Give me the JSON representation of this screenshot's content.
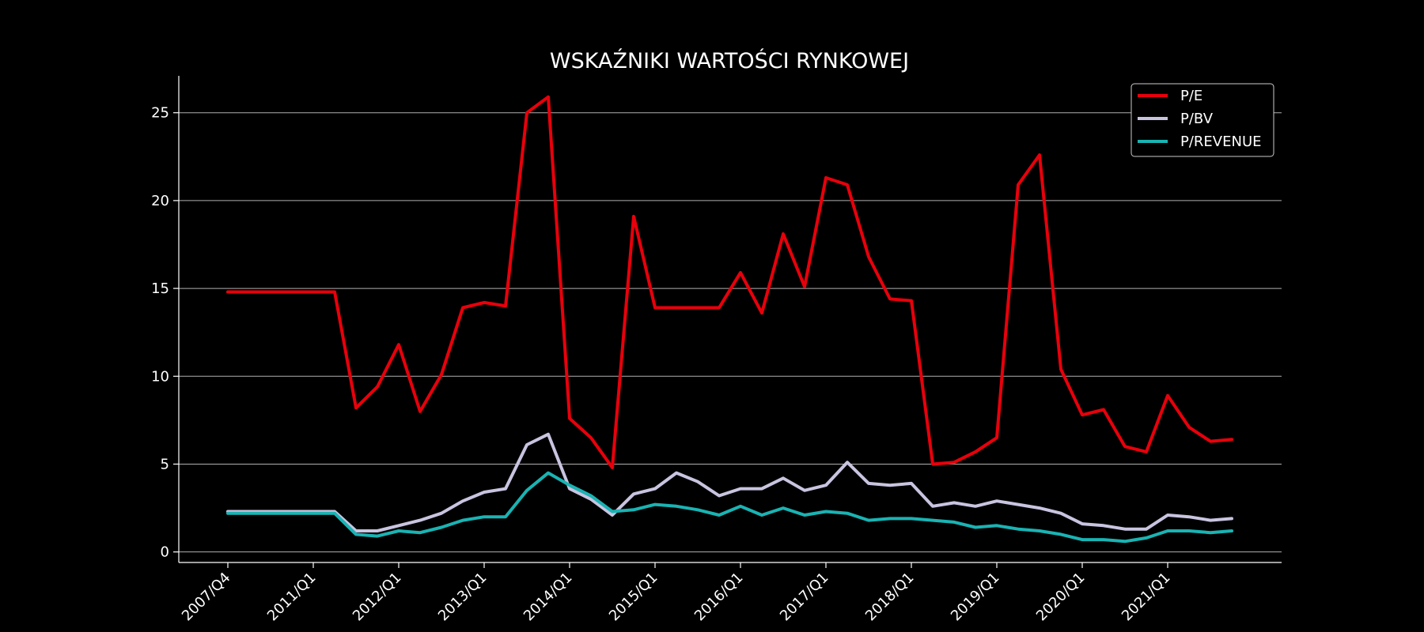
{
  "chart_data": {
    "type": "line",
    "title": "WSKAŹNIKI WARTOŚCI RYNKOWEJ",
    "xlabel": "",
    "ylabel": "",
    "ylim": [
      -0.6,
      27.1
    ],
    "yticks": [
      0,
      5,
      10,
      15,
      20,
      25
    ],
    "grid": "horizontal",
    "legend_position": "top-right",
    "x_tick_labels": [
      {
        "index": 0,
        "label": "2007/Q4"
      },
      {
        "index": 4,
        "label": "2011/Q1"
      },
      {
        "index": 8,
        "label": "2012/Q1"
      },
      {
        "index": 12,
        "label": "2013/Q1"
      },
      {
        "index": 16,
        "label": "2014/Q1"
      },
      {
        "index": 20,
        "label": "2015/Q1"
      },
      {
        "index": 24,
        "label": "2016/Q1"
      },
      {
        "index": 28,
        "label": "2017/Q1"
      },
      {
        "index": 32,
        "label": "2018/Q1"
      },
      {
        "index": 36,
        "label": "2019/Q1"
      },
      {
        "index": 40,
        "label": "2020/Q1"
      },
      {
        "index": 44,
        "label": "2021/Q1"
      }
    ],
    "series": [
      {
        "name": "P/E",
        "color": "#e8000b",
        "values": [
          14.8,
          14.8,
          14.8,
          14.8,
          14.8,
          14.8,
          8.2,
          9.4,
          11.8,
          8.0,
          10.1,
          13.9,
          14.2,
          14.0,
          25.0,
          25.9,
          7.6,
          6.5,
          4.8,
          19.1,
          13.9,
          13.9,
          13.9,
          13.9,
          15.9,
          13.6,
          18.1,
          15.1,
          21.3,
          20.9,
          16.8,
          14.4,
          14.3,
          5.0,
          5.1,
          5.7,
          6.5,
          20.9,
          22.6,
          10.4,
          7.8,
          8.1,
          6.0,
          5.7,
          8.9,
          7.1,
          6.3,
          6.4
        ]
      },
      {
        "name": "P/BV",
        "color": "#c8c4e0",
        "values": [
          2.3,
          2.3,
          2.3,
          2.3,
          2.3,
          2.3,
          1.2,
          1.2,
          1.5,
          1.8,
          2.2,
          2.9,
          3.4,
          3.6,
          6.1,
          6.7,
          3.6,
          3.0,
          2.1,
          3.3,
          3.6,
          4.5,
          4.0,
          3.2,
          3.6,
          3.6,
          4.2,
          3.5,
          3.8,
          5.1,
          3.9,
          3.8,
          3.9,
          2.6,
          2.8,
          2.6,
          2.9,
          2.7,
          2.5,
          2.2,
          1.6,
          1.5,
          1.3,
          1.3,
          2.1,
          2.0,
          1.8,
          1.9
        ]
      },
      {
        "name": "P/REVENUE",
        "color": "#1ab3b3",
        "values": [
          2.2,
          2.2,
          2.2,
          2.2,
          2.2,
          2.2,
          1.0,
          0.9,
          1.2,
          1.1,
          1.4,
          1.8,
          2.0,
          2.0,
          3.5,
          4.5,
          3.8,
          3.2,
          2.3,
          2.4,
          2.7,
          2.6,
          2.4,
          2.1,
          2.6,
          2.1,
          2.5,
          2.1,
          2.3,
          2.2,
          1.8,
          1.9,
          1.9,
          1.8,
          1.7,
          1.4,
          1.5,
          1.3,
          1.2,
          1.0,
          0.7,
          0.7,
          0.6,
          0.8,
          1.2,
          1.2,
          1.1,
          1.2
        ]
      }
    ]
  }
}
